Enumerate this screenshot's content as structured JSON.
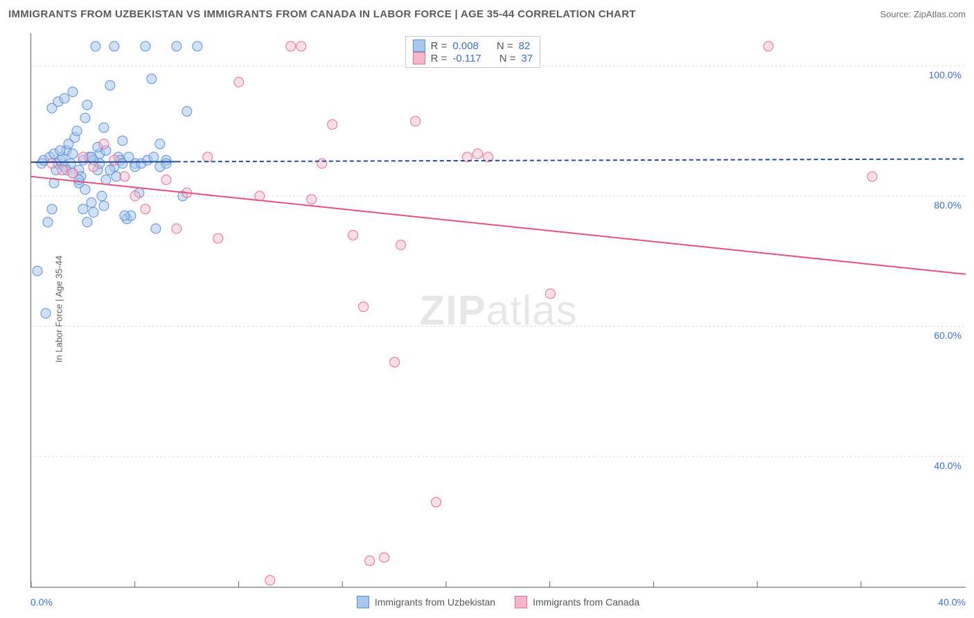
{
  "title": "IMMIGRANTS FROM UZBEKISTAN VS IMMIGRANTS FROM CANADA IN LABOR FORCE | AGE 35-44 CORRELATION CHART",
  "source_label": "Source: ",
  "source_name": "ZipAtlas.com",
  "ylabel": "In Labor Force | Age 35-44",
  "x_axis": {
    "min_label": "0.0%",
    "max_label": "40.0%",
    "min": 0,
    "max": 45,
    "tick_positions_pct": [
      0,
      11.1,
      22.2,
      33.3,
      44.4,
      55.5,
      66.6,
      77.7,
      88.8
    ]
  },
  "y_axis": {
    "min": 20,
    "max": 105,
    "ticks": [
      40,
      60,
      80,
      100
    ],
    "tick_labels": [
      "40.0%",
      "60.0%",
      "80.0%",
      "100.0%"
    ],
    "gridline_color": "#d8d8d8",
    "gridline_dash": "3,3",
    "tick_label_color": "#3b6fc9",
    "tick_label_fontsize": 14
  },
  "series": [
    {
      "id": "uzbekistan",
      "legend_label": "Immigrants from Uzbekistan",
      "marker_fill": "#a9c7ec",
      "marker_stroke": "#5a8fd6",
      "marker_fill_opacity": 0.55,
      "marker_radius": 7,
      "line_stroke": "#1f4e9c",
      "line_width": 2,
      "line_solid_end_x": 7,
      "line_dash": "6,4",
      "trend_y_start": 85.2,
      "trend_y_end": 85.7,
      "stats": {
        "R": "0.008",
        "N": "82"
      },
      "points": [
        [
          0.3,
          68.5
        ],
        [
          0.7,
          62.0
        ],
        [
          0.8,
          76.0
        ],
        [
          1.0,
          78.0
        ],
        [
          1.1,
          82.0
        ],
        [
          1.2,
          84.0
        ],
        [
          1.3,
          85.0
        ],
        [
          1.4,
          85.5
        ],
        [
          1.5,
          86.0
        ],
        [
          1.6,
          84.5
        ],
        [
          1.7,
          87.0
        ],
        [
          1.8,
          88.0
        ],
        [
          1.9,
          85.0
        ],
        [
          2.0,
          86.5
        ],
        [
          2.1,
          89.0
        ],
        [
          2.2,
          90.0
        ],
        [
          2.3,
          84.0
        ],
        [
          2.4,
          83.0
        ],
        [
          2.5,
          85.5
        ],
        [
          2.6,
          92.0
        ],
        [
          2.7,
          94.0
        ],
        [
          2.8,
          86.0
        ],
        [
          2.9,
          79.0
        ],
        [
          3.0,
          77.5
        ],
        [
          3.1,
          103.0
        ],
        [
          3.2,
          84.0
        ],
        [
          3.3,
          85.0
        ],
        [
          3.4,
          80.0
        ],
        [
          3.5,
          78.5
        ],
        [
          3.6,
          82.5
        ],
        [
          3.8,
          97.0
        ],
        [
          4.0,
          103.0
        ],
        [
          4.2,
          86.0
        ],
        [
          4.4,
          88.5
        ],
        [
          4.6,
          76.5
        ],
        [
          4.8,
          77.0
        ],
        [
          5.0,
          85.0
        ],
        [
          5.2,
          80.5
        ],
        [
          5.5,
          103.0
        ],
        [
          5.8,
          98.0
        ],
        [
          6.0,
          75.0
        ],
        [
          6.2,
          88.0
        ],
        [
          6.5,
          85.5
        ],
        [
          7.0,
          103.0
        ],
        [
          7.3,
          80.0
        ],
        [
          7.5,
          93.0
        ],
        [
          8.0,
          103.0
        ],
        [
          1.0,
          93.5
        ],
        [
          1.3,
          94.5
        ],
        [
          1.6,
          95.0
        ],
        [
          2.0,
          96.0
        ],
        [
          2.3,
          82.0
        ],
        [
          2.5,
          78.0
        ],
        [
          2.7,
          76.0
        ],
        [
          3.0,
          85.5
        ],
        [
          3.3,
          86.5
        ],
        [
          3.6,
          87.0
        ],
        [
          4.0,
          84.5
        ],
        [
          4.3,
          85.5
        ],
        [
          4.5,
          77.0
        ],
        [
          0.5,
          85.0
        ],
        [
          0.6,
          85.5
        ],
        [
          0.9,
          86.0
        ],
        [
          1.1,
          86.5
        ],
        [
          1.4,
          87.0
        ],
        [
          1.7,
          84.0
        ],
        [
          2.0,
          83.5
        ],
        [
          2.3,
          82.5
        ],
        [
          2.6,
          81.0
        ],
        [
          2.9,
          86.0
        ],
        [
          3.2,
          87.5
        ],
        [
          3.5,
          90.5
        ],
        [
          3.8,
          84.0
        ],
        [
          4.1,
          83.0
        ],
        [
          4.4,
          85.0
        ],
        [
          4.7,
          86.0
        ],
        [
          5.0,
          84.5
        ],
        [
          5.3,
          85.0
        ],
        [
          5.6,
          85.5
        ],
        [
          5.9,
          86.0
        ],
        [
          6.2,
          84.5
        ],
        [
          6.5,
          85.0
        ]
      ]
    },
    {
      "id": "canada",
      "legend_label": "Immigrants from Canada",
      "marker_fill": "#f5b8cb",
      "marker_stroke": "#e86a95",
      "marker_fill_opacity": 0.45,
      "marker_radius": 7,
      "line_stroke": "#e94e7c",
      "line_width": 2,
      "line_solid_end_x": 45,
      "line_dash": "",
      "trend_y_start": 83.0,
      "trend_y_end": 68.0,
      "stats": {
        "R": "-0.117",
        "N": "37"
      },
      "points": [
        [
          1.0,
          85.0
        ],
        [
          1.5,
          84.0
        ],
        [
          2.0,
          83.5
        ],
        [
          2.5,
          86.0
        ],
        [
          3.0,
          84.5
        ],
        [
          3.5,
          88.0
        ],
        [
          4.0,
          85.5
        ],
        [
          4.5,
          83.0
        ],
        [
          5.0,
          80.0
        ],
        [
          5.5,
          78.0
        ],
        [
          6.5,
          82.5
        ],
        [
          7.0,
          75.0
        ],
        [
          7.5,
          80.5
        ],
        [
          8.5,
          86.0
        ],
        [
          9.0,
          73.5
        ],
        [
          10.0,
          97.5
        ],
        [
          11.0,
          80.0
        ],
        [
          11.5,
          21.0
        ],
        [
          12.5,
          103.0
        ],
        [
          13.0,
          103.0
        ],
        [
          13.5,
          79.5
        ],
        [
          14.0,
          85.0
        ],
        [
          14.5,
          91.0
        ],
        [
          15.5,
          74.0
        ],
        [
          16.0,
          63.0
        ],
        [
          16.3,
          24.0
        ],
        [
          17.0,
          24.5
        ],
        [
          17.5,
          54.5
        ],
        [
          17.8,
          72.5
        ],
        [
          18.5,
          91.5
        ],
        [
          19.5,
          33.0
        ],
        [
          21.5,
          86.5
        ],
        [
          25.0,
          65.0
        ],
        [
          22.0,
          86.0
        ],
        [
          21.0,
          86.0
        ],
        [
          35.5,
          103.0
        ],
        [
          40.5,
          83.0
        ]
      ]
    }
  ],
  "stats_box": {
    "r_label": "R =",
    "n_label": "N ="
  },
  "watermark": {
    "part1": "ZIP",
    "part2": "atlas"
  },
  "background_color": "#ffffff",
  "axis_color": "#606060"
}
